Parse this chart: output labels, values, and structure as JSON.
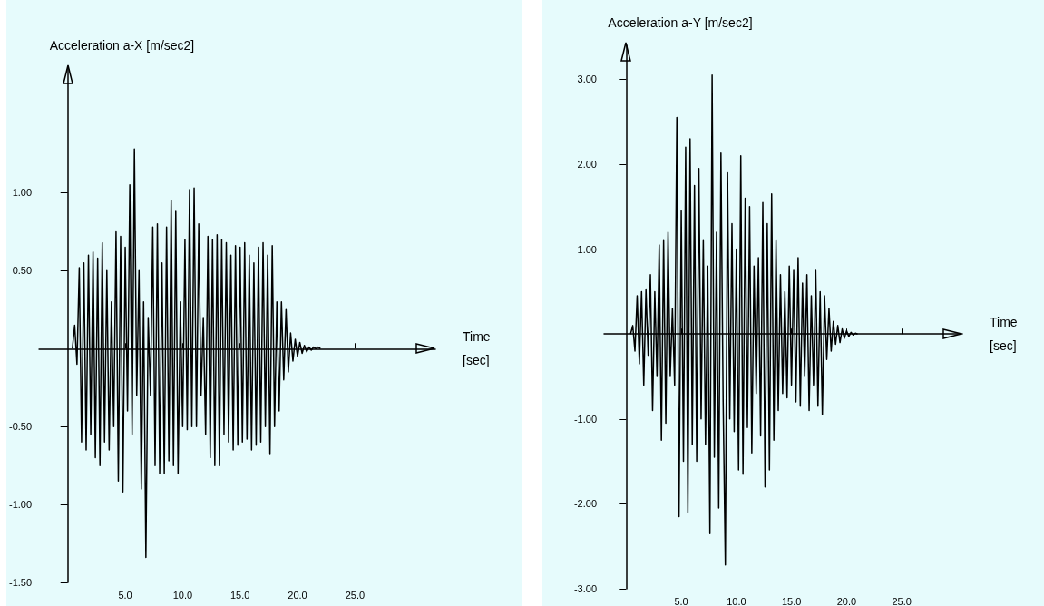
{
  "chart_data": [
    {
      "type": "line",
      "ylabel": "Acceleration a-X [m/sec2]",
      "xlabel": "Time\n[sec]",
      "xlim": [
        -2.5,
        32
      ],
      "ylim": [
        -1.5,
        1.8
      ],
      "xticks": [
        {
          "value": 5,
          "label": "5.0"
        },
        {
          "value": 10,
          "label": "10.0"
        },
        {
          "value": 15,
          "label": "15.0"
        },
        {
          "value": 20,
          "label": "20.0"
        },
        {
          "value": 25,
          "label": "25.0"
        }
      ],
      "yticks": [
        {
          "value": -1.5,
          "label": "-1.50"
        },
        {
          "value": -1,
          "label": "-1.00"
        },
        {
          "value": -0.5,
          "label": "-0.50"
        },
        {
          "value": 0.5,
          "label": "0.50"
        },
        {
          "value": 1,
          "label": "1.00"
        }
      ],
      "grid": false,
      "marker": "none",
      "series": [
        {
          "color": "#000000",
          "x": [
            0.4,
            0.6,
            0.8,
            1.0,
            1.2,
            1.4,
            1.6,
            1.8,
            2.0,
            2.2,
            2.4,
            2.6,
            2.8,
            3.0,
            3.2,
            3.4,
            3.6,
            3.8,
            4.0,
            4.2,
            4.4,
            4.6,
            4.8,
            5.0,
            5.2,
            5.4,
            5.6,
            5.8,
            6.0,
            6.2,
            6.4,
            6.6,
            6.8,
            7.0,
            7.2,
            7.4,
            7.6,
            7.8,
            8.0,
            8.2,
            8.4,
            8.6,
            8.8,
            9.0,
            9.2,
            9.4,
            9.6,
            9.8,
            10.0,
            10.2,
            10.4,
            10.6,
            10.8,
            11.0,
            11.2,
            11.4,
            11.6,
            11.8,
            12.0,
            12.2,
            12.4,
            12.6,
            12.8,
            13.0,
            13.2,
            13.4,
            13.6,
            13.8,
            14.0,
            14.2,
            14.4,
            14.6,
            14.8,
            15.0,
            15.2,
            15.4,
            15.6,
            15.8,
            16.0,
            16.2,
            16.4,
            16.6,
            16.8,
            17.0,
            17.2,
            17.4,
            17.6,
            17.8,
            18.0,
            18.2,
            18.4,
            18.6,
            18.8,
            19.0,
            19.2,
            19.4,
            19.6,
            19.8,
            20.0,
            20.2,
            20.4,
            20.6,
            20.8,
            21.0,
            21.2,
            21.4,
            21.6,
            21.8,
            22.0
          ],
          "values": [
            0,
            0.15,
            -0.1,
            0.52,
            -0.6,
            0.55,
            -0.65,
            0.6,
            -0.55,
            0.62,
            -0.7,
            0.58,
            -0.75,
            0.68,
            -0.6,
            0.5,
            -0.65,
            0.3,
            -0.5,
            0.75,
            -0.85,
            0.72,
            -0.92,
            0.65,
            -0.4,
            1.05,
            -0.55,
            1.28,
            -0.3,
            0.5,
            -0.9,
            0.3,
            -1.34,
            0.2,
            -0.3,
            0.78,
            -0.75,
            0.8,
            -0.8,
            0.55,
            -0.8,
            0.78,
            -0.72,
            0.95,
            -0.75,
            0.88,
            -0.8,
            0.3,
            -0.5,
            0.7,
            -0.52,
            1.02,
            -0.5,
            1.03,
            -0.5,
            0.8,
            -0.3,
            0.2,
            -0.55,
            0.72,
            -0.7,
            0.7,
            -0.75,
            0.73,
            -0.75,
            0.7,
            -0.55,
            0.68,
            -0.6,
            0.6,
            -0.65,
            0.66,
            -0.62,
            0.65,
            -0.6,
            0.68,
            -0.58,
            0.6,
            -0.65,
            0.55,
            -0.62,
            0.65,
            -0.6,
            0.68,
            -0.5,
            0.6,
            -0.68,
            0.66,
            -0.5,
            0.3,
            -0.4,
            0.3,
            -0.2,
            0.25,
            -0.15,
            0.1,
            -0.08,
            0.06,
            -0.05,
            0.04,
            -0.03,
            0.02,
            -0.02,
            0.01,
            -0.01,
            0.01,
            0,
            0.01,
            0
          ]
        }
      ]
    },
    {
      "type": "line",
      "ylabel": "Acceleration a-Y [m/sec2]",
      "xlabel": "Time\n[sec]",
      "xlim": [
        -2,
        30.5
      ],
      "ylim": [
        -3,
        3.4
      ],
      "xticks": [
        {
          "value": 5,
          "label": "5.0"
        },
        {
          "value": 10,
          "label": "10.0"
        },
        {
          "value": 15,
          "label": "15.0"
        },
        {
          "value": 20,
          "label": "20.0"
        },
        {
          "value": 25,
          "label": "25.0"
        }
      ],
      "yticks": [
        {
          "value": -3,
          "label": "-3.00"
        },
        {
          "value": -2,
          "label": "-2.00"
        },
        {
          "value": -1,
          "label": "-1.00"
        },
        {
          "value": 1,
          "label": "1.00"
        },
        {
          "value": 2,
          "label": "2.00"
        },
        {
          "value": 3,
          "label": "3.00"
        }
      ],
      "grid": false,
      "marker": "none",
      "series": [
        {
          "color": "#000000",
          "x": [
            0.4,
            0.6,
            0.8,
            1.0,
            1.2,
            1.4,
            1.6,
            1.8,
            2.0,
            2.2,
            2.4,
            2.6,
            2.8,
            3.0,
            3.2,
            3.4,
            3.6,
            3.8,
            4.0,
            4.2,
            4.4,
            4.6,
            4.8,
            5.0,
            5.2,
            5.4,
            5.6,
            5.8,
            6.0,
            6.2,
            6.4,
            6.6,
            6.8,
            7.0,
            7.2,
            7.4,
            7.6,
            7.8,
            8.0,
            8.2,
            8.4,
            8.6,
            8.8,
            9.0,
            9.2,
            9.4,
            9.6,
            9.8,
            10.0,
            10.2,
            10.4,
            10.6,
            10.8,
            11.0,
            11.2,
            11.4,
            11.6,
            11.8,
            12.0,
            12.2,
            12.4,
            12.6,
            12.8,
            13.0,
            13.2,
            13.4,
            13.6,
            13.8,
            14.0,
            14.2,
            14.4,
            14.6,
            14.8,
            15.0,
            15.2,
            15.4,
            15.6,
            15.8,
            16.0,
            16.2,
            16.4,
            16.6,
            16.8,
            17.0,
            17.2,
            17.4,
            17.6,
            17.8,
            18.0,
            18.2,
            18.4,
            18.6,
            18.8,
            19.0,
            19.2,
            19.4,
            19.6,
            19.8,
            20.0,
            20.2,
            20.4,
            20.6,
            20.8,
            21.0
          ],
          "values": [
            0,
            0.1,
            -0.2,
            0.45,
            -0.35,
            0.5,
            -0.6,
            0.52,
            -0.25,
            0.7,
            -0.9,
            0.5,
            -0.5,
            1.05,
            -1.25,
            1.1,
            -1.05,
            1.2,
            -0.5,
            0.3,
            -0.6,
            2.55,
            -2.15,
            1.45,
            -1.5,
            2.2,
            -2.1,
            2.3,
            -1.3,
            1.75,
            -1.5,
            1.95,
            -1.0,
            1.1,
            -1.3,
            0.8,
            -2.35,
            3.05,
            -1.45,
            1.2,
            -2.05,
            2.13,
            -0.8,
            -2.72,
            1.9,
            -1.0,
            1.3,
            -1.15,
            1.0,
            -1.6,
            2.1,
            -1.65,
            1.6,
            -1.1,
            1.5,
            -1.4,
            0.8,
            -0.7,
            0.9,
            -1.2,
            1.55,
            -1.8,
            1.3,
            -1.6,
            1.65,
            -1.25,
            1.1,
            -0.9,
            0.7,
            -0.7,
            0.5,
            -0.75,
            0.8,
            -0.6,
            0.75,
            -0.8,
            0.9,
            -0.85,
            0.6,
            -0.5,
            0.7,
            -0.9,
            0.45,
            -0.6,
            0.75,
            -0.85,
            0.5,
            -0.95,
            0.45,
            -0.3,
            0.3,
            -0.2,
            0.15,
            -0.12,
            0.1,
            -0.1,
            0.06,
            -0.05,
            0.04,
            -0.03,
            0.02,
            -0.01,
            0.01,
            0
          ]
        }
      ]
    }
  ]
}
